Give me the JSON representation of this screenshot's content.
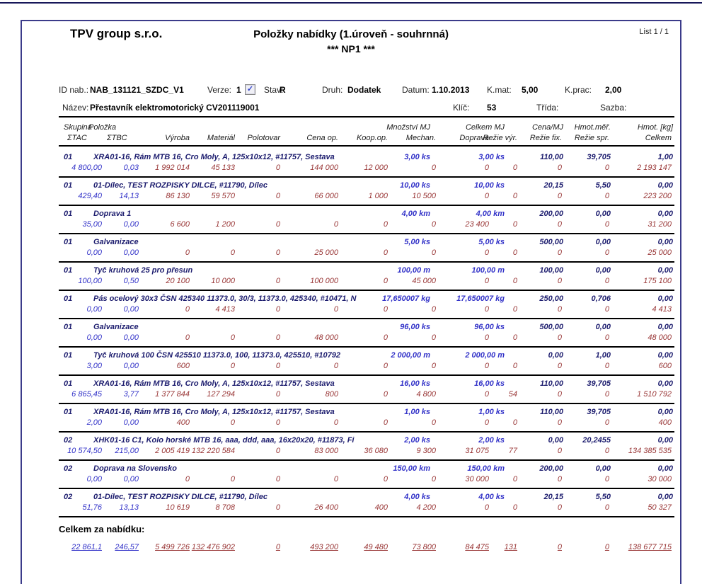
{
  "page": {
    "company": "TPV group s.r.o.",
    "title": "Položky nabídky (1.úroveň - souhrnná)",
    "subtitle": "*** NP1 ***",
    "list_label": "List 1 / 1"
  },
  "info": {
    "id_label": "ID nab.:",
    "id_value": "NAB_131121_SZDC_V1",
    "verze_label": "Verze:",
    "verze_value": "1",
    "verze_checked": "✓",
    "stav_label": "Stav:",
    "stav_value": "R",
    "druh_label": "Druh:",
    "druh_value": "Dodatek",
    "datum_label": "Datum:",
    "datum_value": "1.10.2013",
    "kmat_label": "K.mat:",
    "kmat_value": "5,00",
    "kprac_label": "K.prac:",
    "kprac_value": "2,00",
    "nazev_label": "Název:",
    "nazev_value": "Přestavník elektromotorický CV201119001",
    "klic_label": "Klíč:",
    "klic_value": "53",
    "trida_label": "Třída:",
    "sazba_label": "Sazba:"
  },
  "table": {
    "header_line1": {
      "skupina": "Skupina",
      "polozka": "Položka",
      "mnozstvi_mj": "Množství  MJ",
      "celkem_mj": "Celkem  MJ",
      "cena_mj": "Cena/MJ",
      "hmot_mer": "Hmot.měř.",
      "hmot_kg": "Hmot. [kg]"
    },
    "header_line2": [
      "ΣTAC",
      "ΣTBC",
      "Výroba",
      "Materiál",
      "Polotovar",
      "Cena op.",
      "Koop.op.",
      "Mechan.",
      "Doprava",
      "Režie výr.",
      "Režie fix.",
      "Režie spr.",
      "Celkem"
    ],
    "rows": [
      {
        "skupina": "01",
        "desc": "XRA01-16, Rám MTB 16, Cro Moly, A, 125x10x12, #11757, Sestava",
        "mnozstvi": "3,00 ks",
        "celkem": "3,00 ks",
        "cena_mj": "110,00",
        "hmot_mer": "39,705",
        "hmot_kg": "1,00",
        "values": [
          "4 800,00",
          "0,03",
          "1 992 014",
          "45 133",
          "0",
          "144 000",
          "12 000",
          "0",
          "0",
          "0",
          "0",
          "0",
          "2 193 147"
        ]
      },
      {
        "skupina": "01",
        "desc": "01-Dílec, TEST ROZPISKY DILCE, #11790, Dílec",
        "mnozstvi": "10,00 ks",
        "celkem": "10,00 ks",
        "cena_mj": "20,15",
        "hmot_mer": "5,50",
        "hmot_kg": "0,00",
        "values": [
          "429,40",
          "14,13",
          "86 130",
          "59 570",
          "0",
          "66 000",
          "1 000",
          "10 500",
          "0",
          "0",
          "0",
          "0",
          "223 200"
        ]
      },
      {
        "skupina": "01",
        "desc": "Doprava 1",
        "mnozstvi": "4,00 km",
        "celkem": "4,00 km",
        "cena_mj": "200,00",
        "hmot_mer": "0,00",
        "hmot_kg": "0,00",
        "values": [
          "35,00",
          "0,00",
          "6 600",
          "1 200",
          "0",
          "0",
          "0",
          "0",
          "23 400",
          "0",
          "0",
          "0",
          "31 200"
        ]
      },
      {
        "skupina": "01",
        "desc": "Galvanizace",
        "mnozstvi": "5,00 ks",
        "celkem": "5,00 ks",
        "cena_mj": "500,00",
        "hmot_mer": "0,00",
        "hmot_kg": "0,00",
        "values": [
          "0,00",
          "0,00",
          "0",
          "0",
          "0",
          "25 000",
          "0",
          "0",
          "0",
          "0",
          "0",
          "0",
          "25 000"
        ]
      },
      {
        "skupina": "01",
        "desc": "Tyč kruhová 25 pro přesun",
        "mnozstvi": "100,00 m",
        "celkem": "100,00 m",
        "cena_mj": "100,00",
        "hmot_mer": "0,00",
        "hmot_kg": "0,00",
        "values": [
          "100,00",
          "0,50",
          "20 100",
          "10 000",
          "0",
          "100 000",
          "0",
          "45 000",
          "0",
          "0",
          "0",
          "0",
          "175 100"
        ]
      },
      {
        "skupina": "01",
        "desc": "Pás ocelový 30x3 ČSN 425340 11373.0, 30/3, 11373.0, 425340, #10471, N",
        "mnozstvi": "17,650007 kg",
        "celkem": "17,650007 kg",
        "cena_mj": "250,00",
        "hmot_mer": "0,706",
        "hmot_kg": "0,00",
        "values": [
          "0,00",
          "0,00",
          "0",
          "4 413",
          "0",
          "0",
          "0",
          "0",
          "0",
          "0",
          "0",
          "0",
          "4 413"
        ]
      },
      {
        "skupina": "01",
        "desc": "Galvanizace",
        "mnozstvi": "96,00 ks",
        "celkem": "96,00 ks",
        "cena_mj": "500,00",
        "hmot_mer": "0,00",
        "hmot_kg": "0,00",
        "values": [
          "0,00",
          "0,00",
          "0",
          "0",
          "0",
          "48 000",
          "0",
          "0",
          "0",
          "0",
          "0",
          "0",
          "48 000"
        ]
      },
      {
        "skupina": "01",
        "desc": "Tyč kruhová 100 ČSN 425510 11373.0, 100, 11373.0, 425510, #10792",
        "mnozstvi": "2 000,00 m",
        "celkem": "2 000,00 m",
        "cena_mj": "0,00",
        "hmot_mer": "1,00",
        "hmot_kg": "0,00",
        "values": [
          "3,00",
          "0,00",
          "600",
          "0",
          "0",
          "0",
          "0",
          "0",
          "0",
          "0",
          "0",
          "0",
          "600"
        ]
      },
      {
        "skupina": "01",
        "desc": "XRA01-16, Rám MTB 16, Cro Moly, A, 125x10x12, #11757, Sestava",
        "mnozstvi": "16,00 ks",
        "celkem": "16,00 ks",
        "cena_mj": "110,00",
        "hmot_mer": "39,705",
        "hmot_kg": "0,00",
        "values": [
          "6 865,45",
          "3,77",
          "1 377 844",
          "127 294",
          "0",
          "800",
          "0",
          "4 800",
          "0",
          "54",
          "0",
          "0",
          "1 510 792"
        ]
      },
      {
        "skupina": "01",
        "desc": "XRA01-16, Rám MTB 16, Cro Moly, A, 125x10x12, #11757, Sestava",
        "mnozstvi": "1,00 ks",
        "celkem": "1,00 ks",
        "cena_mj": "110,00",
        "hmot_mer": "39,705",
        "hmot_kg": "0,00",
        "values": [
          "2,00",
          "0,00",
          "400",
          "0",
          "0",
          "0",
          "0",
          "0",
          "0",
          "0",
          "0",
          "0",
          "400"
        ]
      },
      {
        "skupina": "02",
        "desc": "XHK01-16 C1, Kolo horské MTB 16, aaa, ddd, aaa, 16x20x20, #11873, Fi",
        "mnozstvi": "2,00 ks",
        "celkem": "2,00 ks",
        "cena_mj": "0,00",
        "hmot_mer": "20,2455",
        "hmot_kg": "0,00",
        "values": [
          "10 574,50",
          "215,00",
          "2 005 419",
          "132 220 584",
          "0",
          "83 000",
          "36 080",
          "9 300",
          "31 075",
          "77",
          "0",
          "0",
          "134 385 535"
        ]
      },
      {
        "skupina": "02",
        "desc": "Doprava na Slovensko",
        "mnozstvi": "150,00 km",
        "celkem": "150,00 km",
        "cena_mj": "200,00",
        "hmot_mer": "0,00",
        "hmot_kg": "0,00",
        "values": [
          "0,00",
          "0,00",
          "0",
          "0",
          "0",
          "0",
          "0",
          "0",
          "30 000",
          "0",
          "0",
          "0",
          "30 000"
        ]
      },
      {
        "skupina": "02",
        "desc": "01-Dílec, TEST ROZPISKY DILCE, #11790, Dílec",
        "mnozstvi": "4,00 ks",
        "celkem": "4,00 ks",
        "cena_mj": "20,15",
        "hmot_mer": "5,50",
        "hmot_kg": "0,00",
        "values": [
          "51,76",
          "13,13",
          "10 619",
          "8 708",
          "0",
          "26 400",
          "400",
          "4 200",
          "0",
          "0",
          "0",
          "0",
          "50 327"
        ]
      }
    ]
  },
  "footer": {
    "total_label": "Celkem za nabídku:",
    "totals": [
      "22 861,1",
      "246,57",
      "5 499 726",
      "132 476 902",
      "0",
      "493 200",
      "49 480",
      "73 800",
      "84 475",
      "131",
      "0",
      "0",
      "138 677 715"
    ]
  },
  "colors": {
    "accent_navy": "#1c1c6e",
    "value_blue": "#3232c8",
    "value_maroon": "#993636",
    "frame": "#3b3b8a"
  }
}
